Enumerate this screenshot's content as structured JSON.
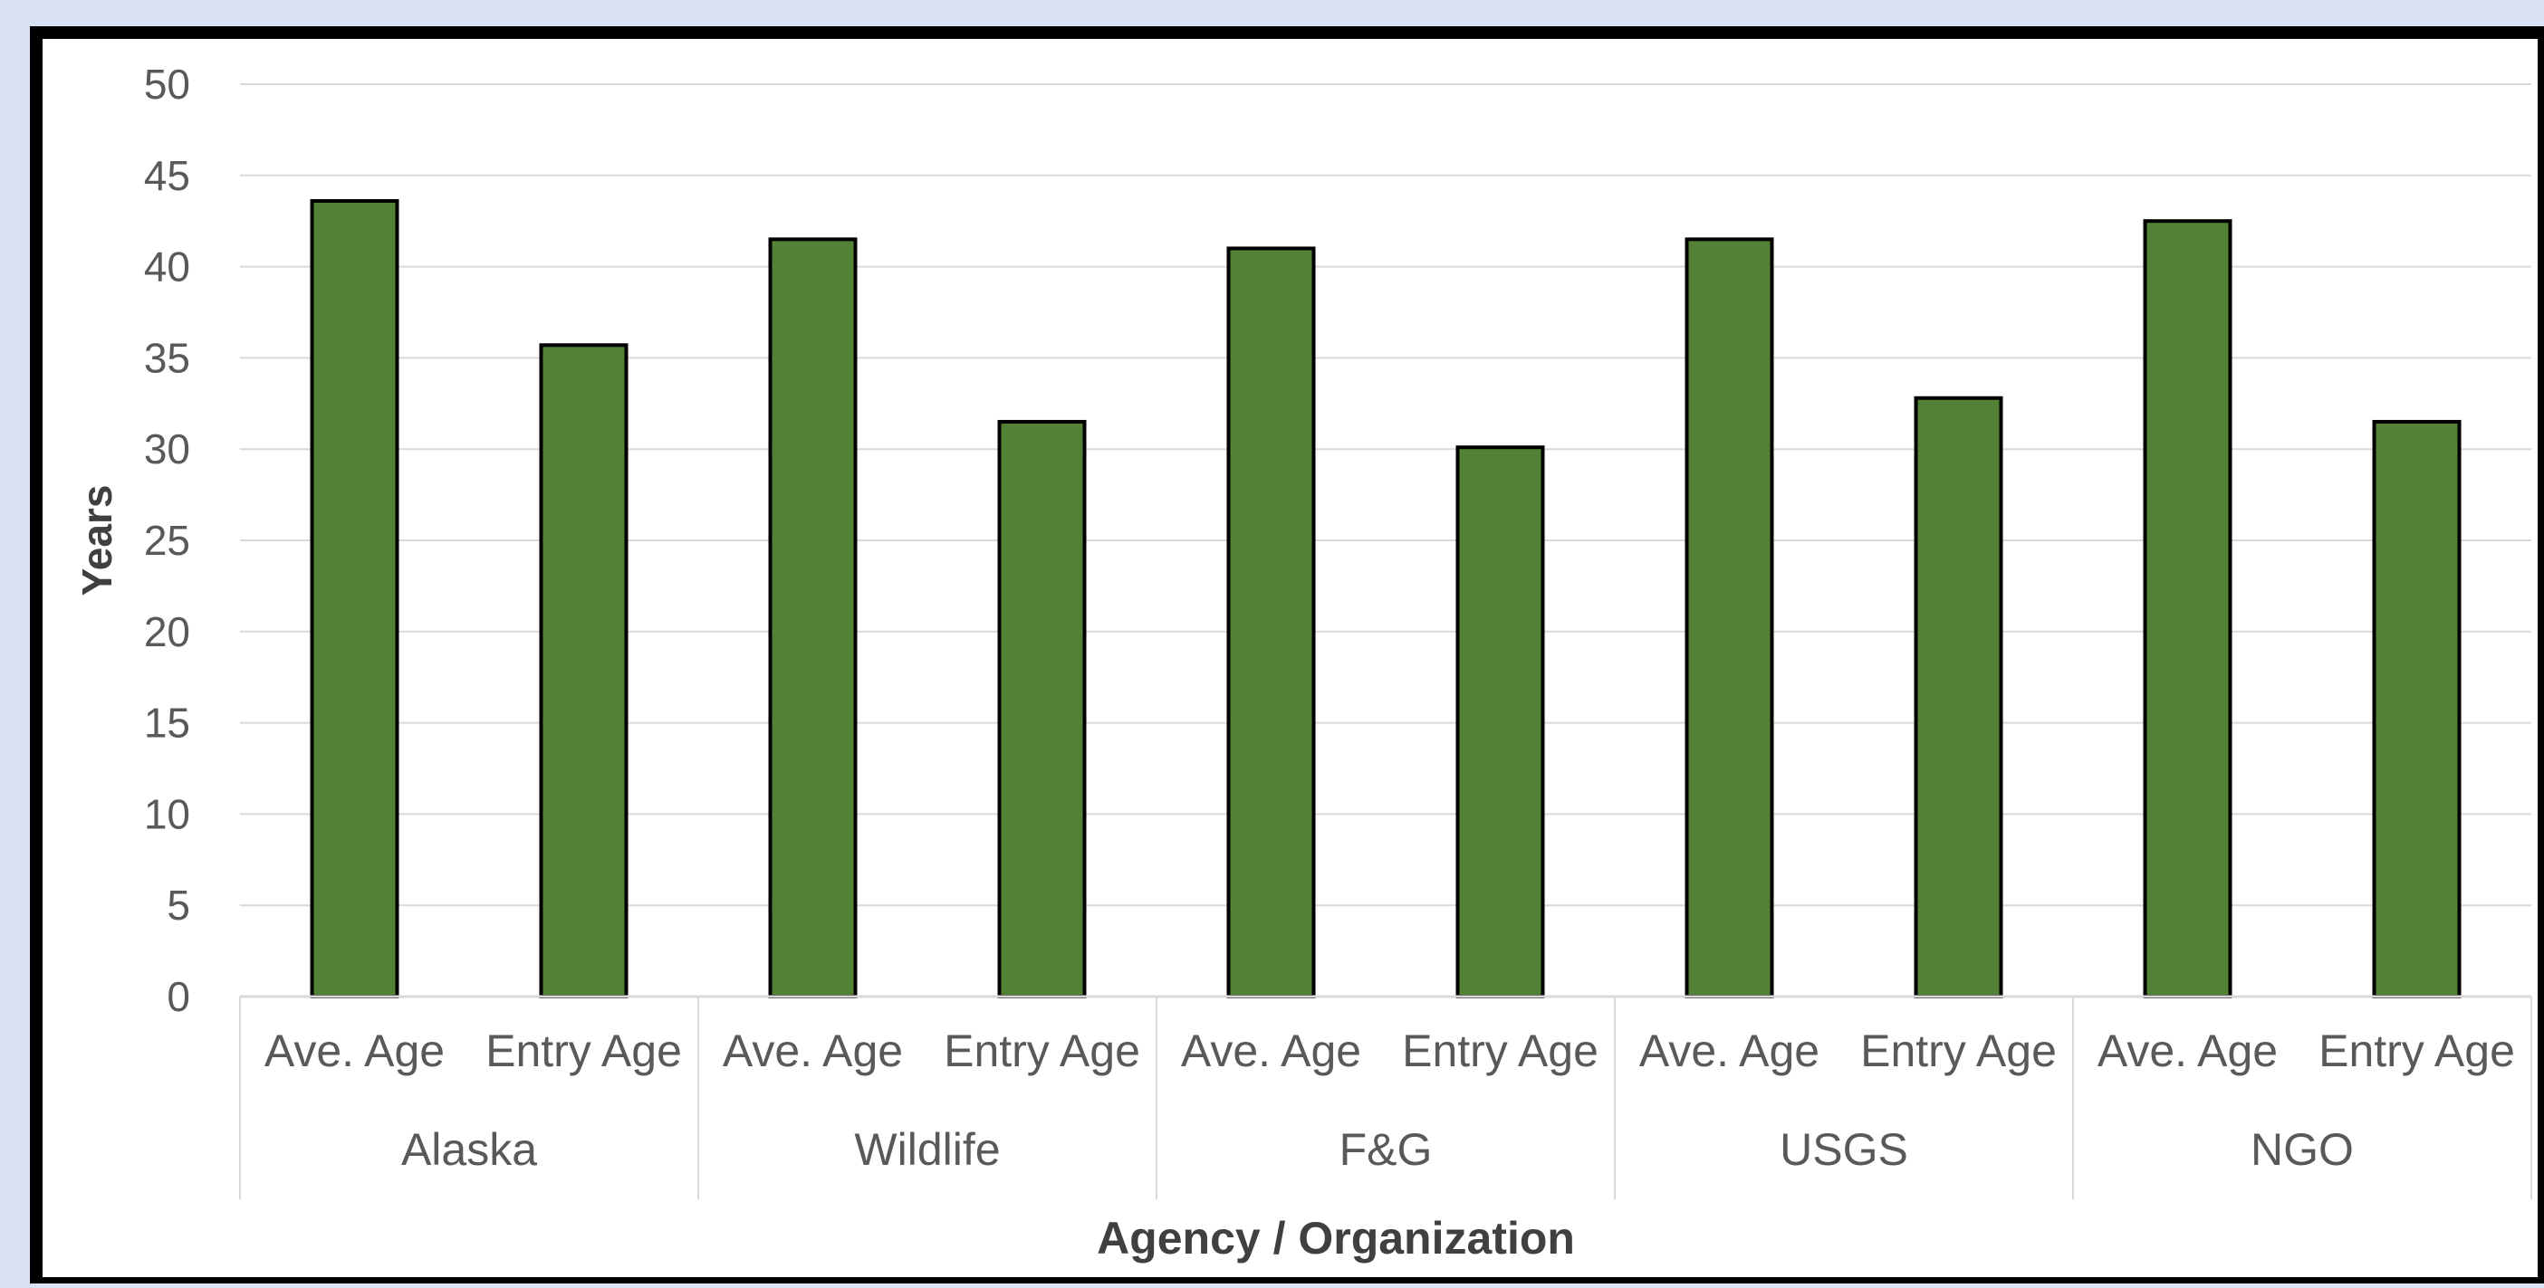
{
  "colors": {
    "page_background": "#dae3f3",
    "plot_background": "#ffffff",
    "frame": "#000000",
    "bar_fill": "#538135",
    "bar_stroke": "#000000",
    "gridline": "#d9d9d9",
    "text": "#595959",
    "axis_title": "#404040"
  },
  "chart_data": {
    "type": "bar",
    "title": "",
    "xlabel": "Agency / Organization",
    "ylabel": "Years",
    "ylim": [
      0,
      50
    ],
    "yticks": [
      0,
      5,
      10,
      15,
      20,
      25,
      30,
      35,
      40,
      45,
      50
    ],
    "grid": true,
    "legend": "none",
    "groups": [
      {
        "name": "Alaska",
        "bars": [
          {
            "label": "Ave. Age",
            "value": 43.6
          },
          {
            "label": "Entry Age",
            "value": 35.7
          }
        ]
      },
      {
        "name": "Wildlife",
        "bars": [
          {
            "label": "Ave. Age",
            "value": 41.5
          },
          {
            "label": "Entry Age",
            "value": 31.5
          }
        ]
      },
      {
        "name": "F&G",
        "bars": [
          {
            "label": "Ave. Age",
            "value": 41.0
          },
          {
            "label": "Entry Age",
            "value": 30.1
          }
        ]
      },
      {
        "name": "USGS",
        "bars": [
          {
            "label": "Ave. Age",
            "value": 41.5
          },
          {
            "label": "Entry Age",
            "value": 32.8
          }
        ]
      },
      {
        "name": "NGO",
        "bars": [
          {
            "label": "Ave. Age",
            "value": 42.5
          },
          {
            "label": "Entry Age",
            "value": 31.5
          }
        ]
      }
    ]
  }
}
